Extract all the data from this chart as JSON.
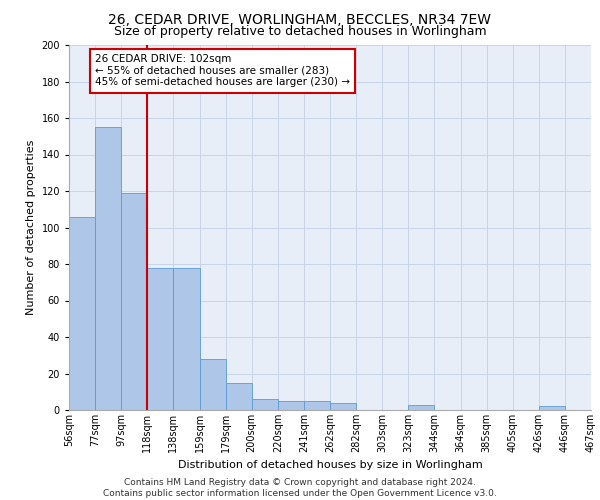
{
  "title_line1": "26, CEDAR DRIVE, WORLINGHAM, BECCLES, NR34 7EW",
  "title_line2": "Size of property relative to detached houses in Worlingham",
  "xlabel": "Distribution of detached houses by size in Worlingham",
  "ylabel": "Number of detached properties",
  "bar_values": [
    106,
    155,
    119,
    78,
    78,
    28,
    15,
    6,
    5,
    5,
    4,
    0,
    0,
    3,
    0,
    0,
    0,
    0,
    2,
    0
  ],
  "bar_labels": [
    "56sqm",
    "77sqm",
    "97sqm",
    "118sqm",
    "138sqm",
    "159sqm",
    "179sqm",
    "200sqm",
    "220sqm",
    "241sqm",
    "262sqm",
    "282sqm",
    "303sqm",
    "323sqm",
    "344sqm",
    "364sqm",
    "385sqm",
    "405sqm",
    "426sqm",
    "446sqm",
    "467sqm"
  ],
  "bar_color": "#aec6e8",
  "bar_edge_color": "#5b9bd5",
  "vline_color": "#cc0000",
  "annotation_text": "26 CEDAR DRIVE: 102sqm\n← 55% of detached houses are smaller (283)\n45% of semi-detached houses are larger (230) →",
  "annotation_box_color": "#cc0000",
  "ylim": [
    0,
    200
  ],
  "yticks": [
    0,
    20,
    40,
    60,
    80,
    100,
    120,
    140,
    160,
    180,
    200
  ],
  "grid_color": "#c8d4e8",
  "background_color": "#e8eef8",
  "footer_line1": "Contains HM Land Registry data © Crown copyright and database right 2024.",
  "footer_line2": "Contains public sector information licensed under the Open Government Licence v3.0.",
  "title_fontsize": 10,
  "subtitle_fontsize": 9,
  "axis_label_fontsize": 8,
  "tick_fontsize": 7,
  "annotation_fontsize": 7.5,
  "footer_fontsize": 6.5
}
